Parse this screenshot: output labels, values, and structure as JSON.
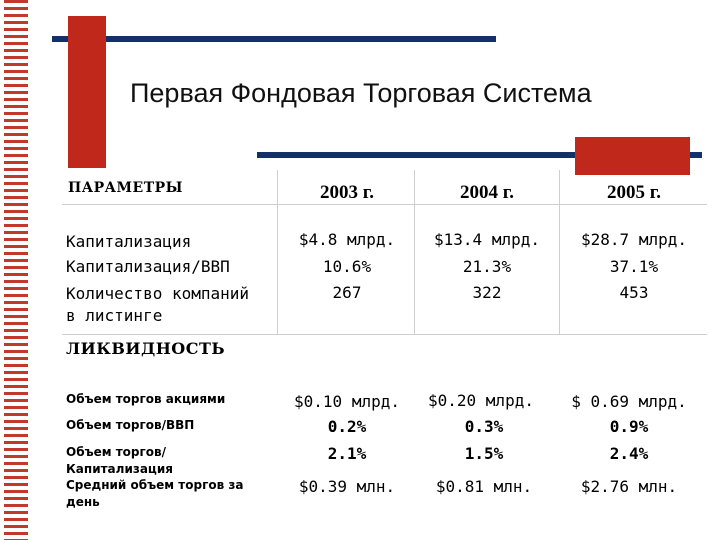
{
  "title": "Первая Фондовая Торговая Система",
  "table": {
    "header": {
      "param": "ПАРАМЕТРЫ",
      "years": [
        "2003 г.",
        "2004 г.",
        "2005 г."
      ]
    },
    "section1": {
      "rows": [
        {
          "label": "Капитализация",
          "values": [
            "$4.8 млрд.",
            "$13.4 млрд.",
            "$28.7 млрд."
          ]
        },
        {
          "label": "Капитализация/ВВП",
          "values": [
            "10.6%",
            "21.3%",
            "37.1%"
          ]
        },
        {
          "label": "Количество компаний в листинге",
          "values": [
            "267",
            "322",
            "453"
          ]
        }
      ]
    },
    "section2": {
      "title": "ЛИКВИДНОСТЬ",
      "rows": [
        {
          "label": "Объем торгов акциями",
          "values": [
            "$0.10 млрд.",
            "$0.20 млрд.",
            "$ 0.69 млрд."
          ]
        },
        {
          "label": "Объем торгов/ВВП",
          "values": [
            "0.2%",
            "0.3%",
            "0.9%"
          ]
        },
        {
          "label": "Объем торгов/Капитализация",
          "values": [
            "2.1%",
            "1.5%",
            "2.4%"
          ]
        },
        {
          "label": "Средний объем торгов за день",
          "values": [
            "$0.39 млн.",
            "$0.81 млн.",
            "$2.76 млн."
          ]
        }
      ]
    }
  },
  "colors": {
    "accent_red": "#c0281c",
    "navy": "#13306a"
  }
}
